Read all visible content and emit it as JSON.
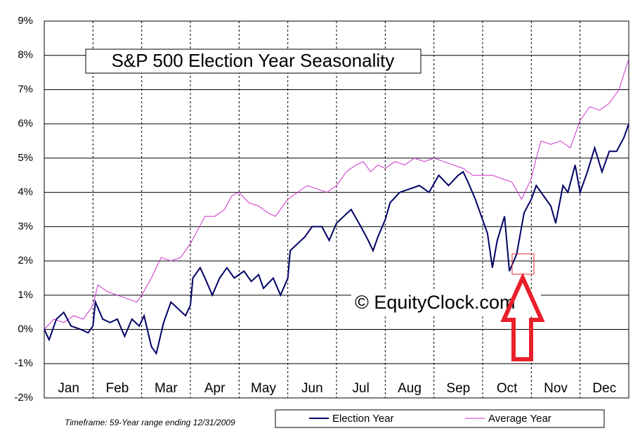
{
  "chart_data": {
    "type": "line",
    "title": "S&P 500 Election Year Seasonality",
    "watermark": "© EquityClock.com",
    "footnote": "Timeframe: 59-Year range ending 12/31/2009",
    "xlim": [
      0,
      12
    ],
    "xticks": [
      {
        "value": 0.5,
        "label": "Jan"
      },
      {
        "value": 1.5,
        "label": "Feb"
      },
      {
        "value": 2.5,
        "label": "Mar"
      },
      {
        "value": 3.5,
        "label": "Apr"
      },
      {
        "value": 4.5,
        "label": "May"
      },
      {
        "value": 5.5,
        "label": "Jun"
      },
      {
        "value": 6.5,
        "label": "Jul"
      },
      {
        "value": 7.5,
        "label": "Aug"
      },
      {
        "value": 8.5,
        "label": "Sep"
      },
      {
        "value": 9.5,
        "label": "Oct"
      },
      {
        "value": 10.5,
        "label": "Nov"
      },
      {
        "value": 11.5,
        "label": "Dec"
      }
    ],
    "ylim": [
      -2,
      9
    ],
    "yticks": [
      {
        "value": -2,
        "label": "-2%"
      },
      {
        "value": -1,
        "label": "-1%"
      },
      {
        "value": 0,
        "label": "0%"
      },
      {
        "value": 1,
        "label": "1%"
      },
      {
        "value": 2,
        "label": "2%"
      },
      {
        "value": 3,
        "label": "3%"
      },
      {
        "value": 4,
        "label": "4%"
      },
      {
        "value": 5,
        "label": "5%"
      },
      {
        "value": 6,
        "label": "6%"
      },
      {
        "value": 7,
        "label": "7%"
      },
      {
        "value": 8,
        "label": "8%"
      },
      {
        "value": 9,
        "label": "9%"
      }
    ],
    "grid": true,
    "series": [
      {
        "name": "Election Year",
        "color": "#000066",
        "x": [
          0,
          0.1,
          0.25,
          0.4,
          0.55,
          0.75,
          0.9,
          1.0,
          1.05,
          1.2,
          1.35,
          1.5,
          1.65,
          1.8,
          1.95,
          2.05,
          2.2,
          2.3,
          2.45,
          2.6,
          2.75,
          2.9,
          3.0,
          3.05,
          3.2,
          3.3,
          3.45,
          3.6,
          3.75,
          3.9,
          4.1,
          4.25,
          4.4,
          4.5,
          4.7,
          4.85,
          5.0,
          5.05,
          5.2,
          5.35,
          5.5,
          5.7,
          5.85,
          6.0,
          6.15,
          6.3,
          6.5,
          6.65,
          6.75,
          6.85,
          7.0,
          7.1,
          7.3,
          7.5,
          7.7,
          7.9,
          8.1,
          8.3,
          8.5,
          8.6,
          8.7,
          8.85,
          9.0,
          9.1,
          9.2,
          9.3,
          9.45,
          9.55,
          9.7,
          9.85,
          10.0,
          10.1,
          10.25,
          10.4,
          10.5,
          10.65,
          10.75,
          10.9,
          11.0,
          11.15,
          11.3,
          11.45,
          11.6,
          11.75,
          11.9,
          12.0
        ],
        "values": [
          0,
          -0.3,
          0.3,
          0.5,
          0.1,
          0,
          -0.1,
          0.1,
          0.8,
          0.3,
          0.2,
          0.3,
          -0.2,
          0.3,
          0.1,
          0.4,
          -0.5,
          -0.7,
          0.2,
          0.8,
          0.6,
          0.4,
          0.7,
          1.5,
          1.8,
          1.5,
          1.0,
          1.5,
          1.8,
          1.5,
          1.7,
          1.4,
          1.6,
          1.2,
          1.5,
          1.0,
          1.5,
          2.3,
          2.5,
          2.7,
          3.0,
          3.0,
          2.6,
          3.1,
          3.3,
          3.5,
          3.0,
          2.6,
          2.3,
          2.7,
          3.2,
          3.7,
          4.0,
          4.1,
          4.2,
          4.0,
          4.5,
          4.2,
          4.5,
          4.6,
          4.3,
          3.8,
          3.2,
          2.8,
          1.8,
          2.6,
          3.3,
          1.7,
          2.2,
          3.4,
          3.8,
          4.2,
          3.9,
          3.6,
          3.1,
          4.2,
          4.0,
          4.8,
          4.0,
          4.6,
          5.3,
          4.6,
          5.2,
          5.2,
          5.6,
          6.0
        ]
      },
      {
        "name": "Average Year",
        "color": "#cc33cc",
        "x": [
          0,
          0.2,
          0.4,
          0.6,
          0.8,
          1.0,
          1.1,
          1.3,
          1.5,
          1.7,
          1.9,
          2.0,
          2.2,
          2.4,
          2.6,
          2.8,
          3.0,
          3.15,
          3.3,
          3.5,
          3.7,
          3.85,
          4.0,
          4.2,
          4.4,
          4.6,
          4.75,
          4.9,
          5.0,
          5.2,
          5.4,
          5.6,
          5.8,
          6.0,
          6.2,
          6.4,
          6.55,
          6.7,
          6.85,
          7.0,
          7.2,
          7.4,
          7.6,
          7.8,
          8.0,
          8.2,
          8.4,
          8.6,
          8.8,
          9.0,
          9.2,
          9.4,
          9.6,
          9.8,
          10.0,
          10.1,
          10.2,
          10.4,
          10.6,
          10.8,
          11.0,
          11.2,
          11.4,
          11.6,
          11.8,
          12.0
        ],
        "values": [
          0,
          0.3,
          0.2,
          0.4,
          0.3,
          0.7,
          1.3,
          1.1,
          1.0,
          0.9,
          0.8,
          1.0,
          1.5,
          2.1,
          2.0,
          2.1,
          2.5,
          2.9,
          3.3,
          3.3,
          3.5,
          3.9,
          4.0,
          3.7,
          3.6,
          3.4,
          3.3,
          3.6,
          3.8,
          4.0,
          4.2,
          4.1,
          4.0,
          4.2,
          4.6,
          4.8,
          4.9,
          4.6,
          4.8,
          4.7,
          4.9,
          4.8,
          5.0,
          4.9,
          5.0,
          4.9,
          4.8,
          4.7,
          4.5,
          4.5,
          4.5,
          4.4,
          4.3,
          3.8,
          4.4,
          5.0,
          5.5,
          5.4,
          5.5,
          5.3,
          6.1,
          6.5,
          6.4,
          6.6,
          7.0,
          7.9
        ]
      }
    ]
  }
}
